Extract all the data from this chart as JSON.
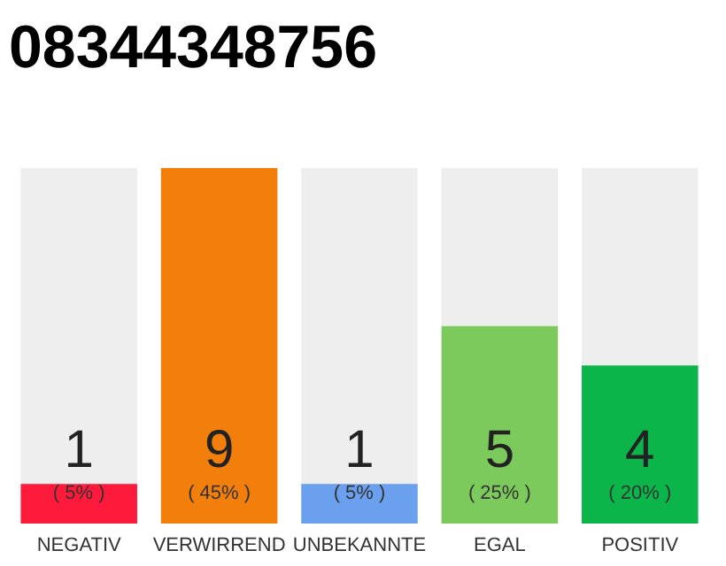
{
  "chart_data": {
    "type": "bar",
    "title": "08344348756",
    "categories": [
      "NEGATIV",
      "VERWIRREND",
      "UNBEKANNTE",
      "EGAL",
      "POSITIV"
    ],
    "values": [
      1,
      9,
      1,
      5,
      4
    ],
    "colors": [
      "#fe1a3a",
      "#f27e0c",
      "#6aa0ee",
      "#7dca5c",
      "#0bb54a"
    ],
    "ylim": [
      0,
      9
    ],
    "data_labels": true,
    "annotations": [
      "( 5% )",
      "( 45% )",
      "( 5% )",
      "( 25% )",
      "( 20% )"
    ]
  }
}
